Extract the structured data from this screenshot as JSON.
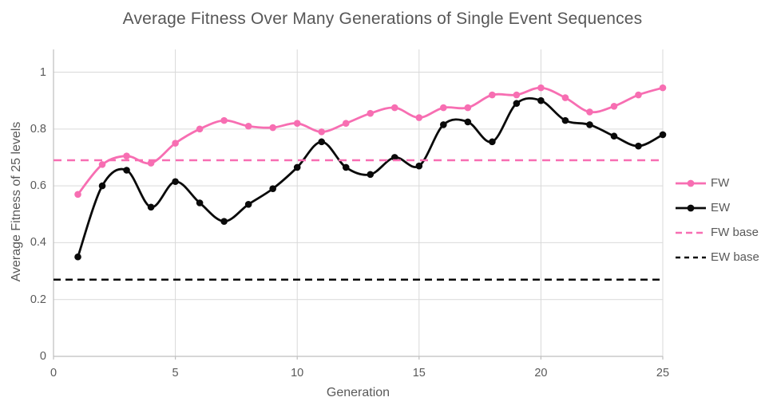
{
  "title": "Average Fitness Over Many Generations of Single Event Sequences",
  "chart_data": {
    "type": "line",
    "title": "Average Fitness Over Many Generations of Single Event Sequences",
    "xlabel": "Generation",
    "ylabel": "Average Fitness of 25 levels",
    "xlim": [
      0,
      25
    ],
    "ylim": [
      0,
      1.08
    ],
    "xticks": [
      "0",
      "5",
      "10",
      "15",
      "20",
      "25"
    ],
    "yticks": [
      "0",
      "0.2",
      "0.4",
      "0.6",
      "0.8",
      "1"
    ],
    "grid": true,
    "legend_position": "right",
    "x": [
      1,
      2,
      3,
      4,
      5,
      6,
      7,
      8,
      9,
      10,
      11,
      12,
      13,
      14,
      15,
      16,
      17,
      18,
      19,
      20,
      21,
      22,
      23,
      24,
      25
    ],
    "series": [
      {
        "name": "FW",
        "type": "smooth-line-markers",
        "color": "#F76EB2",
        "values": [
          0.57,
          0.675,
          0.705,
          0.68,
          0.75,
          0.8,
          0.83,
          0.81,
          0.805,
          0.82,
          0.79,
          0.82,
          0.855,
          0.875,
          0.84,
          0.875,
          0.875,
          0.92,
          0.92,
          0.945,
          0.91,
          0.86,
          0.88,
          0.92,
          0.945
        ]
      },
      {
        "name": "EW",
        "type": "smooth-line-markers",
        "color": "#0A0A0A",
        "values": [
          0.35,
          0.6,
          0.655,
          0.525,
          0.615,
          0.54,
          0.475,
          0.535,
          0.59,
          0.665,
          0.755,
          0.665,
          0.64,
          0.7,
          0.67,
          0.815,
          0.825,
          0.755,
          0.89,
          0.9,
          0.83,
          0.815,
          0.775,
          0.74,
          0.78
        ]
      },
      {
        "name": "FW base",
        "type": "dashed-horizontal",
        "color": "#F76EB2",
        "value": 0.69,
        "dash": "10,7"
      },
      {
        "name": "EW base",
        "type": "dashed-horizontal",
        "color": "#0A0A0A",
        "value": 0.27,
        "dash": "9,6"
      }
    ],
    "colors": {
      "grid": "#D9D9D9",
      "axis": "#BFBFBF",
      "text": "#595959"
    }
  }
}
